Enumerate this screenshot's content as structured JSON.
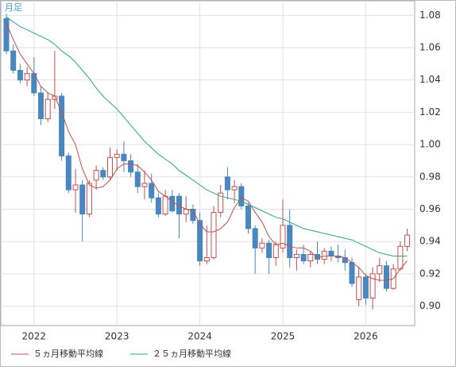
{
  "chart_data": {
    "type": "candlestick",
    "label": "月足",
    "categories": [
      null,
      null,
      null,
      null,
      "2022",
      null,
      null,
      null,
      null,
      null,
      null,
      null,
      null,
      null,
      null,
      null,
      "2023",
      null,
      null,
      null,
      null,
      null,
      null,
      null,
      null,
      null,
      null,
      null,
      "2024",
      null,
      null,
      null,
      null,
      null,
      null,
      null,
      null,
      null,
      null,
      null,
      "2025",
      null,
      null,
      null,
      null,
      null,
      null,
      null,
      null,
      null,
      null,
      null,
      "2026",
      null,
      null,
      null,
      null,
      null,
      null
    ],
    "open": [
      1.078,
      1.058,
      1.046,
      1.04,
      1.044,
      1.032,
      1.016,
      1.028,
      1.03,
      0.993,
      0.972,
      0.975,
      0.957,
      0.978,
      0.984,
      0.98,
      0.992,
      0.994,
      0.99,
      0.983,
      0.974,
      0.976,
      0.967,
      0.957,
      0.968,
      0.968,
      0.957,
      0.96,
      0.953,
      0.928,
      0.93,
      0.958,
      0.98,
      0.972,
      0.974,
      0.962,
      0.948,
      0.936,
      0.939,
      0.93,
      0.936,
      0.95,
      0.93,
      0.932,
      0.928,
      0.932,
      0.929,
      0.934,
      0.931,
      0.93,
      0.927,
      0.904,
      0.918,
      0.905,
      0.92,
      0.925,
      0.911,
      0.923,
      0.937
    ],
    "high": [
      1.081,
      1.062,
      1.05,
      1.048,
      1.054,
      1.036,
      1.032,
      1.058,
      1.032,
      0.995,
      0.985,
      0.978,
      0.978,
      0.987,
      0.986,
      0.998,
      0.997,
      1.002,
      0.994,
      0.988,
      0.984,
      0.982,
      0.97,
      0.972,
      0.972,
      0.97,
      0.968,
      0.963,
      0.958,
      0.95,
      0.962,
      0.975,
      0.986,
      0.978,
      0.976,
      0.964,
      0.95,
      0.942,
      0.941,
      0.94,
      0.966,
      0.96,
      0.935,
      0.938,
      0.934,
      0.94,
      0.936,
      0.937,
      0.938,
      0.935,
      0.93,
      0.924,
      0.92,
      0.924,
      0.93,
      0.928,
      0.926,
      0.94,
      0.948
    ],
    "low": [
      1.056,
      1.044,
      1.038,
      1.036,
      1.03,
      1.012,
      1.014,
      1.022,
      0.99,
      0.97,
      0.958,
      0.94,
      0.955,
      0.972,
      0.978,
      0.978,
      0.984,
      0.983,
      0.98,
      0.97,
      0.966,
      0.964,
      0.955,
      0.956,
      0.958,
      0.942,
      0.952,
      0.951,
      0.925,
      0.926,
      0.929,
      0.955,
      0.966,
      0.964,
      0.96,
      0.945,
      0.92,
      0.933,
      0.92,
      0.925,
      0.933,
      0.924,
      0.922,
      0.926,
      0.924,
      0.926,
      0.926,
      0.928,
      0.927,
      0.922,
      0.912,
      0.9,
      0.901,
      0.898,
      0.915,
      0.909,
      0.91,
      0.922,
      0.934
    ],
    "close": [
      1.058,
      1.046,
      1.04,
      1.044,
      1.032,
      1.016,
      1.028,
      1.03,
      0.993,
      0.972,
      0.975,
      0.957,
      0.976,
      0.984,
      0.98,
      0.992,
      0.994,
      0.99,
      0.983,
      0.974,
      0.976,
      0.967,
      0.957,
      0.968,
      0.959,
      0.957,
      0.96,
      0.953,
      0.928,
      0.93,
      0.958,
      0.97,
      0.972,
      0.974,
      0.962,
      0.948,
      0.936,
      0.939,
      0.93,
      0.938,
      0.95,
      0.93,
      0.932,
      0.928,
      0.932,
      0.929,
      0.934,
      0.931,
      0.93,
      0.927,
      0.914,
      0.918,
      0.905,
      0.92,
      0.925,
      0.911,
      0.923,
      0.937,
      0.944
    ],
    "up_color": "#c0504d",
    "down_color": "#4a86bf",
    "series": [
      {
        "name": "５ヵ月移動平均線",
        "color": "#c0504d",
        "values": [
          1.075,
          1.065,
          1.056,
          1.05,
          1.044,
          1.036,
          1.032,
          1.03,
          1.02,
          1.008,
          1.0,
          0.985,
          0.975,
          0.973,
          0.974,
          0.978,
          0.985,
          0.988,
          0.988,
          0.987,
          0.983,
          0.978,
          0.971,
          0.968,
          0.965,
          0.962,
          0.96,
          0.959,
          0.951,
          0.946,
          0.946,
          0.948,
          0.952,
          0.961,
          0.967,
          0.965,
          0.958,
          0.952,
          0.943,
          0.938,
          0.939,
          0.937,
          0.936,
          0.936,
          0.934,
          0.93,
          0.931,
          0.931,
          0.931,
          0.93,
          0.927,
          0.924,
          0.919,
          0.917,
          0.916,
          0.916,
          0.917,
          0.923,
          0.928
        ]
      },
      {
        "name": "２５ヵ月移動平均線",
        "color": "#2ca67c",
        "values": [
          1.079,
          1.076,
          1.073,
          1.071,
          1.069,
          1.067,
          1.065,
          1.062,
          1.058,
          1.055,
          1.051,
          1.046,
          1.041,
          1.035,
          1.03,
          1.026,
          1.022,
          1.017,
          1.012,
          1.007,
          1.002,
          0.998,
          0.994,
          0.991,
          0.988,
          0.984,
          0.981,
          0.978,
          0.975,
          0.972,
          0.97,
          0.968,
          0.967,
          0.966,
          0.965,
          0.963,
          0.961,
          0.959,
          0.957,
          0.955,
          0.954,
          0.952,
          0.95,
          0.948,
          0.947,
          0.946,
          0.945,
          0.944,
          0.943,
          0.942,
          0.941,
          0.939,
          0.937,
          0.935,
          0.933,
          0.932,
          0.931,
          0.931,
          0.931
        ]
      }
    ],
    "ylim": [
      0.888,
      1.089
    ],
    "yticks": [
      {
        "value": 0.9,
        "label": "0.90"
      },
      {
        "value": 0.92,
        "label": "0.92"
      },
      {
        "value": 0.94,
        "label": "0.94"
      },
      {
        "value": 0.96,
        "label": "0.96"
      },
      {
        "value": 0.98,
        "label": "0.98"
      },
      {
        "value": 1.0,
        "label": "1.00"
      },
      {
        "value": 1.02,
        "label": "1.02"
      },
      {
        "value": 1.04,
        "label": "1.04"
      },
      {
        "value": 1.06,
        "label": "1.06"
      },
      {
        "value": 1.08,
        "label": "1.08"
      }
    ],
    "grid": true
  }
}
